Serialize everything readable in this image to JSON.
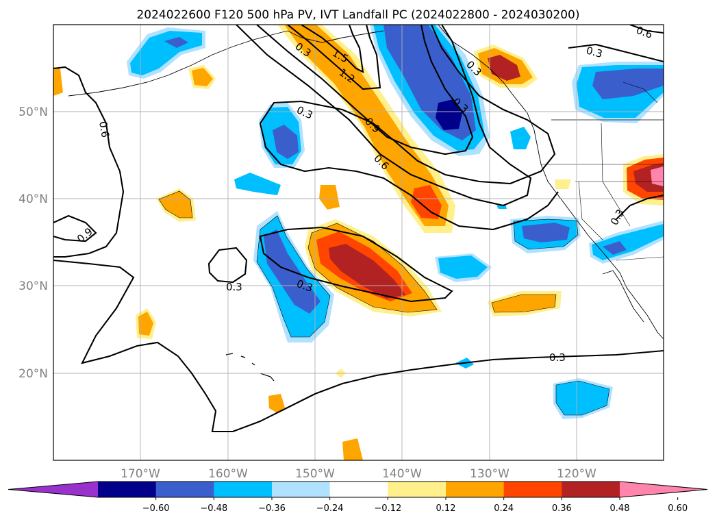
{
  "title": "2024022600 F120 500 hPa PV, IVT Landfall PC (2024022800 - 2024030200)",
  "map": {
    "lon_range": [
      -180,
      -110
    ],
    "lat_range": [
      10,
      60
    ],
    "lon_ticks": [
      "170°W",
      "160°W",
      "150°W",
      "140°W",
      "130°W",
      "120°W"
    ],
    "lat_ticks": [
      "50°N",
      "40°N",
      "30°N",
      "20°N"
    ],
    "gridlines": true
  },
  "colorbar": {
    "extend": "both",
    "labels": [
      "−0.60",
      "−0.48",
      "−0.36",
      "−0.24",
      "−0.12",
      "0.12",
      "0.24",
      "0.36",
      "0.48",
      "0.60"
    ],
    "colors": [
      "#9932cc",
      "#00008b",
      "#3a5fcd",
      "#00bfff",
      "#b0e2ff",
      "#ffffff",
      "#fff08c",
      "#ffa500",
      "#ff4500",
      "#b22222",
      "#ff85ac"
    ]
  },
  "contour_labels": [
    "1.5",
    "1.2",
    "0.9",
    "0.6",
    "0.3",
    "0.3",
    "0.3",
    "0.3",
    "0.6",
    "0.3",
    "0.3",
    "0.3",
    "0.9",
    "0.3",
    "0.3",
    "0.6"
  ]
}
